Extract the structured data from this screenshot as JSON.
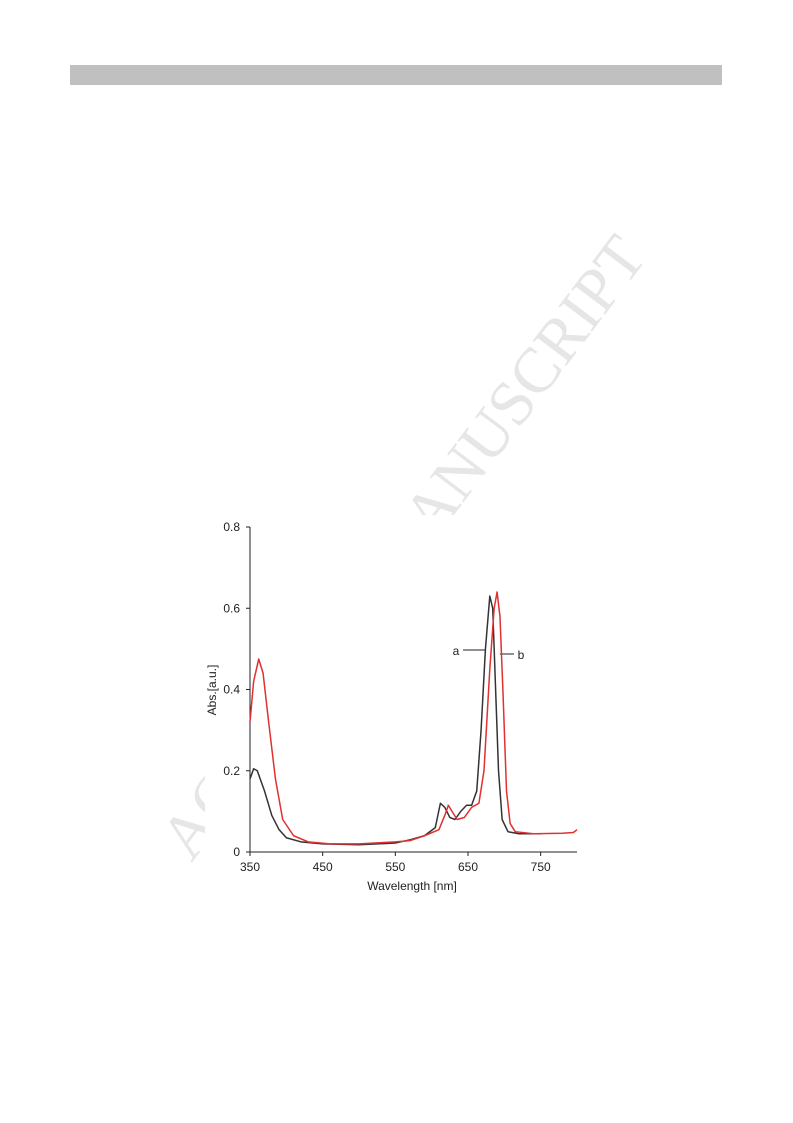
{
  "watermark": "ACCEPTED MANUSCRIPT",
  "chart_data": {
    "type": "line",
    "x_label": "Wavelength [nm]",
    "y_label": "Abs.[a.u.]",
    "xlim": [
      350,
      800
    ],
    "xticks": [
      350,
      450,
      550,
      650,
      750
    ],
    "ylim": [
      0,
      0.8
    ],
    "yticks": [
      0,
      0.2,
      0.4,
      0.6,
      0.8
    ],
    "series": [
      {
        "name": "a",
        "color": "#333333",
        "x": [
          350,
          355,
          360,
          370,
          380,
          390,
          400,
          420,
          450,
          500,
          550,
          570,
          590,
          605,
          612,
          618,
          625,
          632,
          640,
          648,
          655,
          662,
          668,
          674,
          680,
          684,
          688,
          692,
          697,
          705,
          720,
          750
        ],
        "values": [
          0.18,
          0.205,
          0.2,
          0.15,
          0.09,
          0.055,
          0.035,
          0.025,
          0.02,
          0.018,
          0.022,
          0.03,
          0.04,
          0.06,
          0.12,
          0.11,
          0.085,
          0.08,
          0.1,
          0.115,
          0.115,
          0.15,
          0.3,
          0.5,
          0.63,
          0.6,
          0.4,
          0.2,
          0.08,
          0.05,
          0.045,
          0.045
        ]
      },
      {
        "name": "b",
        "color": "#e03030",
        "x": [
          350,
          355,
          362,
          368,
          375,
          385,
          395,
          410,
          430,
          460,
          500,
          550,
          570,
          590,
          610,
          618,
          623,
          628,
          635,
          645,
          655,
          665,
          672,
          680,
          686,
          690,
          694,
          698,
          703,
          708,
          715,
          740,
          780,
          795,
          800
        ],
        "values": [
          0.32,
          0.42,
          0.475,
          0.44,
          0.33,
          0.18,
          0.08,
          0.04,
          0.025,
          0.02,
          0.02,
          0.025,
          0.028,
          0.04,
          0.055,
          0.09,
          0.115,
          0.1,
          0.08,
          0.085,
          0.11,
          0.12,
          0.2,
          0.45,
          0.6,
          0.64,
          0.58,
          0.4,
          0.15,
          0.07,
          0.05,
          0.045,
          0.046,
          0.048,
          0.055
        ]
      }
    ]
  }
}
